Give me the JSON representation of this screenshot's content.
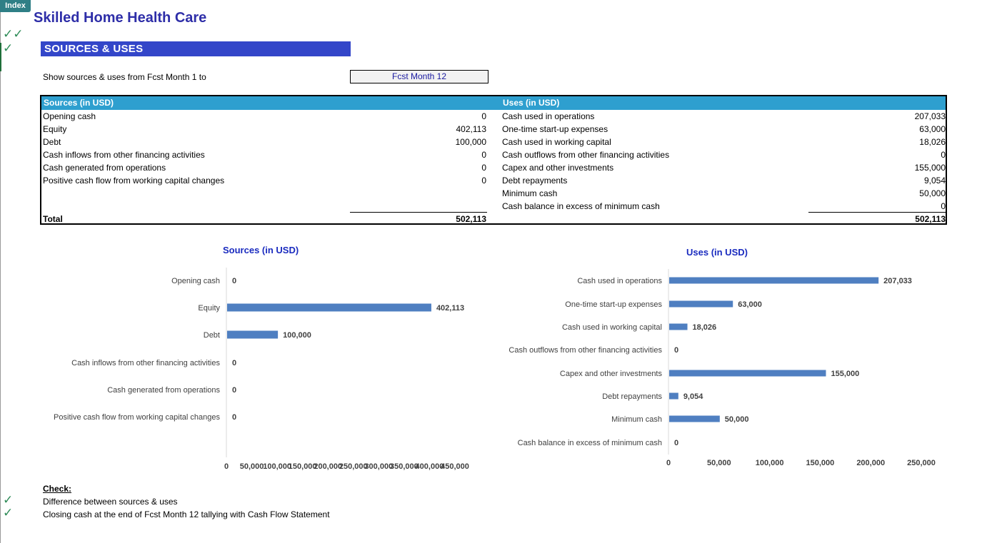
{
  "nav": {
    "index_label": "Index"
  },
  "header": {
    "title": "Skilled Home Health Care",
    "section": "SOURCES & USES"
  },
  "selector": {
    "label": "Show sources & uses from Fcst Month 1 to",
    "value": "Fcst Month 12"
  },
  "table": {
    "sources_header": "Sources (in USD)",
    "uses_header": "Uses (in USD)",
    "sources": [
      {
        "label": "Opening cash",
        "value": "0"
      },
      {
        "label": "Equity",
        "value": "402,113"
      },
      {
        "label": "Debt",
        "value": "100,000"
      },
      {
        "label": "Cash inflows from other financing activities",
        "value": "0"
      },
      {
        "label": "Cash generated from operations",
        "value": "0"
      },
      {
        "label": "Positive cash flow from working capital changes",
        "value": "0"
      }
    ],
    "uses": [
      {
        "label": "Cash used in operations",
        "value": "207,033"
      },
      {
        "label": "One-time start-up expenses",
        "value": "63,000"
      },
      {
        "label": "Cash used in working capital",
        "value": "18,026"
      },
      {
        "label": "Cash outflows from other  financing activities",
        "value": "0"
      },
      {
        "label": "Capex and other investments",
        "value": "155,000"
      },
      {
        "label": "Debt repayments",
        "value": "9,054"
      },
      {
        "label": "Minimum cash",
        "value": "50,000"
      },
      {
        "label": "Cash balance in excess of minimum cash",
        "value": "0"
      }
    ],
    "total_label": "Total",
    "sources_total": "502,113",
    "uses_total": "502,113"
  },
  "chart_data": [
    {
      "type": "bar",
      "orientation": "horizontal",
      "title": "Sources (in USD)",
      "categories": [
        "Opening cash",
        "Equity",
        "Debt",
        "Cash inflows from other financing activities",
        "Cash generated from operations",
        "Positive cash flow from working capital changes"
      ],
      "values": [
        0,
        402113,
        100000,
        0,
        0,
        0
      ],
      "data_labels": [
        "0",
        "402,113",
        "100,000",
        "0",
        "0",
        "0"
      ],
      "xlim": [
        0,
        450000
      ],
      "ticks": [
        0,
        50000,
        100000,
        150000,
        200000,
        250000,
        300000,
        350000,
        400000,
        450000
      ],
      "tick_labels": [
        "0",
        "50,000",
        "100,000",
        "150,000",
        "200,000",
        "250,000",
        "300,000",
        "350,000",
        "400,000",
        "450,000"
      ],
      "color": "#4f7fc1",
      "grid": false
    },
    {
      "type": "bar",
      "orientation": "horizontal",
      "title": "Uses (in USD)",
      "categories": [
        "Cash used in operations",
        "One-time start-up expenses",
        "Cash used in working capital",
        "Cash outflows from other  financing activities",
        "Capex and other investments",
        "Debt repayments",
        "Minimum cash",
        "Cash balance in excess of minimum cash"
      ],
      "values": [
        207033,
        63000,
        18026,
        0,
        155000,
        9054,
        50000,
        0
      ],
      "data_labels": [
        "207,033",
        "63,000",
        "18,026",
        "0",
        "155,000",
        "9,054",
        "50,000",
        "0"
      ],
      "xlim": [
        0,
        250000
      ],
      "ticks": [
        0,
        50000,
        100000,
        150000,
        200000,
        250000
      ],
      "tick_labels": [
        "0",
        "50,000",
        "100,000",
        "150,000",
        "200,000",
        "250,000"
      ],
      "color": "#4f7fc1",
      "grid": false
    }
  ],
  "checks": {
    "title": "Check:",
    "items": [
      "Difference between sources & uses",
      "Closing cash at the end of Fcst Month 12 tallying with Cash Flow Statement"
    ]
  }
}
